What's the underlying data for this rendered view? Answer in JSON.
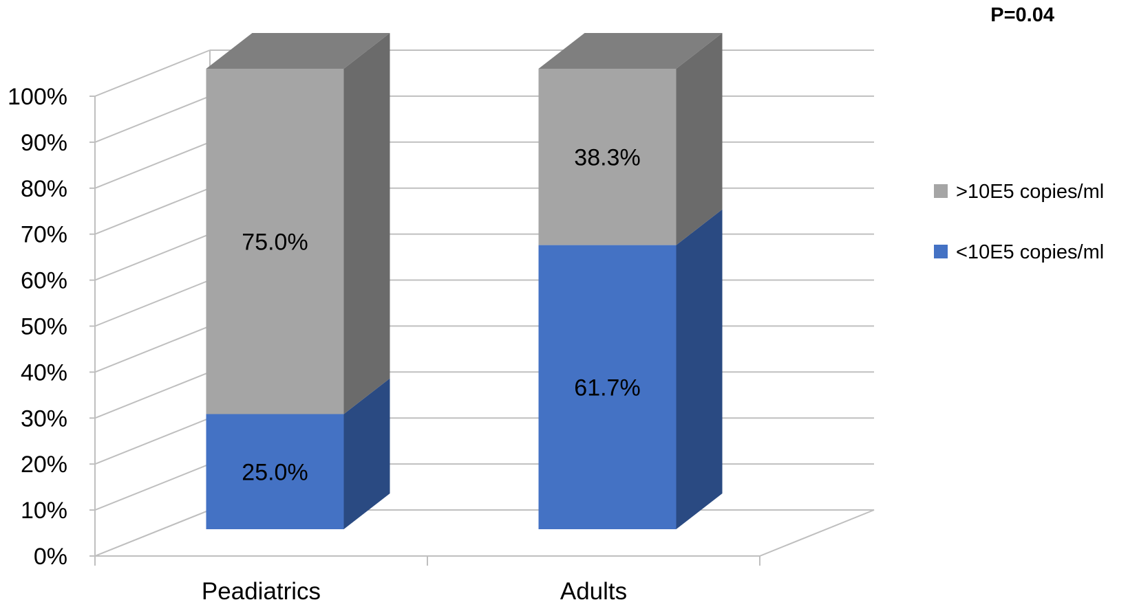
{
  "chart_data": {
    "type": "bar",
    "stacked": true,
    "percent_stacked": true,
    "three_d": true,
    "categories": [
      "Peadiatrics",
      "Adults"
    ],
    "series": [
      {
        "name": "<10E5 copies/ml",
        "values": [
          25.0,
          61.7
        ],
        "labels": [
          "25.0%",
          "61.7%"
        ],
        "color": "#4472c4",
        "side_color": "#2a4a82"
      },
      {
        "name": ">10E5 copies/ml",
        "values": [
          75.0,
          38.3
        ],
        "labels": [
          "75.0%",
          "38.3%"
        ],
        "color": "#a5a5a5",
        "side_color": "#6b6b6b",
        "top_color": "#7f7f7f"
      }
    ],
    "title": "",
    "xlabel": "",
    "ylabel": "",
    "ylim": [
      0,
      100
    ],
    "y_ticks": [
      "0%",
      "10%",
      "20%",
      "30%",
      "40%",
      "50%",
      "60%",
      "70%",
      "80%",
      "90%",
      "100%"
    ],
    "legend": {
      "position": "right",
      "entries": [
        ">10E5 copies/ml",
        "<10E5 copies/ml"
      ]
    },
    "annotation": "P=0.04",
    "grid": true
  }
}
